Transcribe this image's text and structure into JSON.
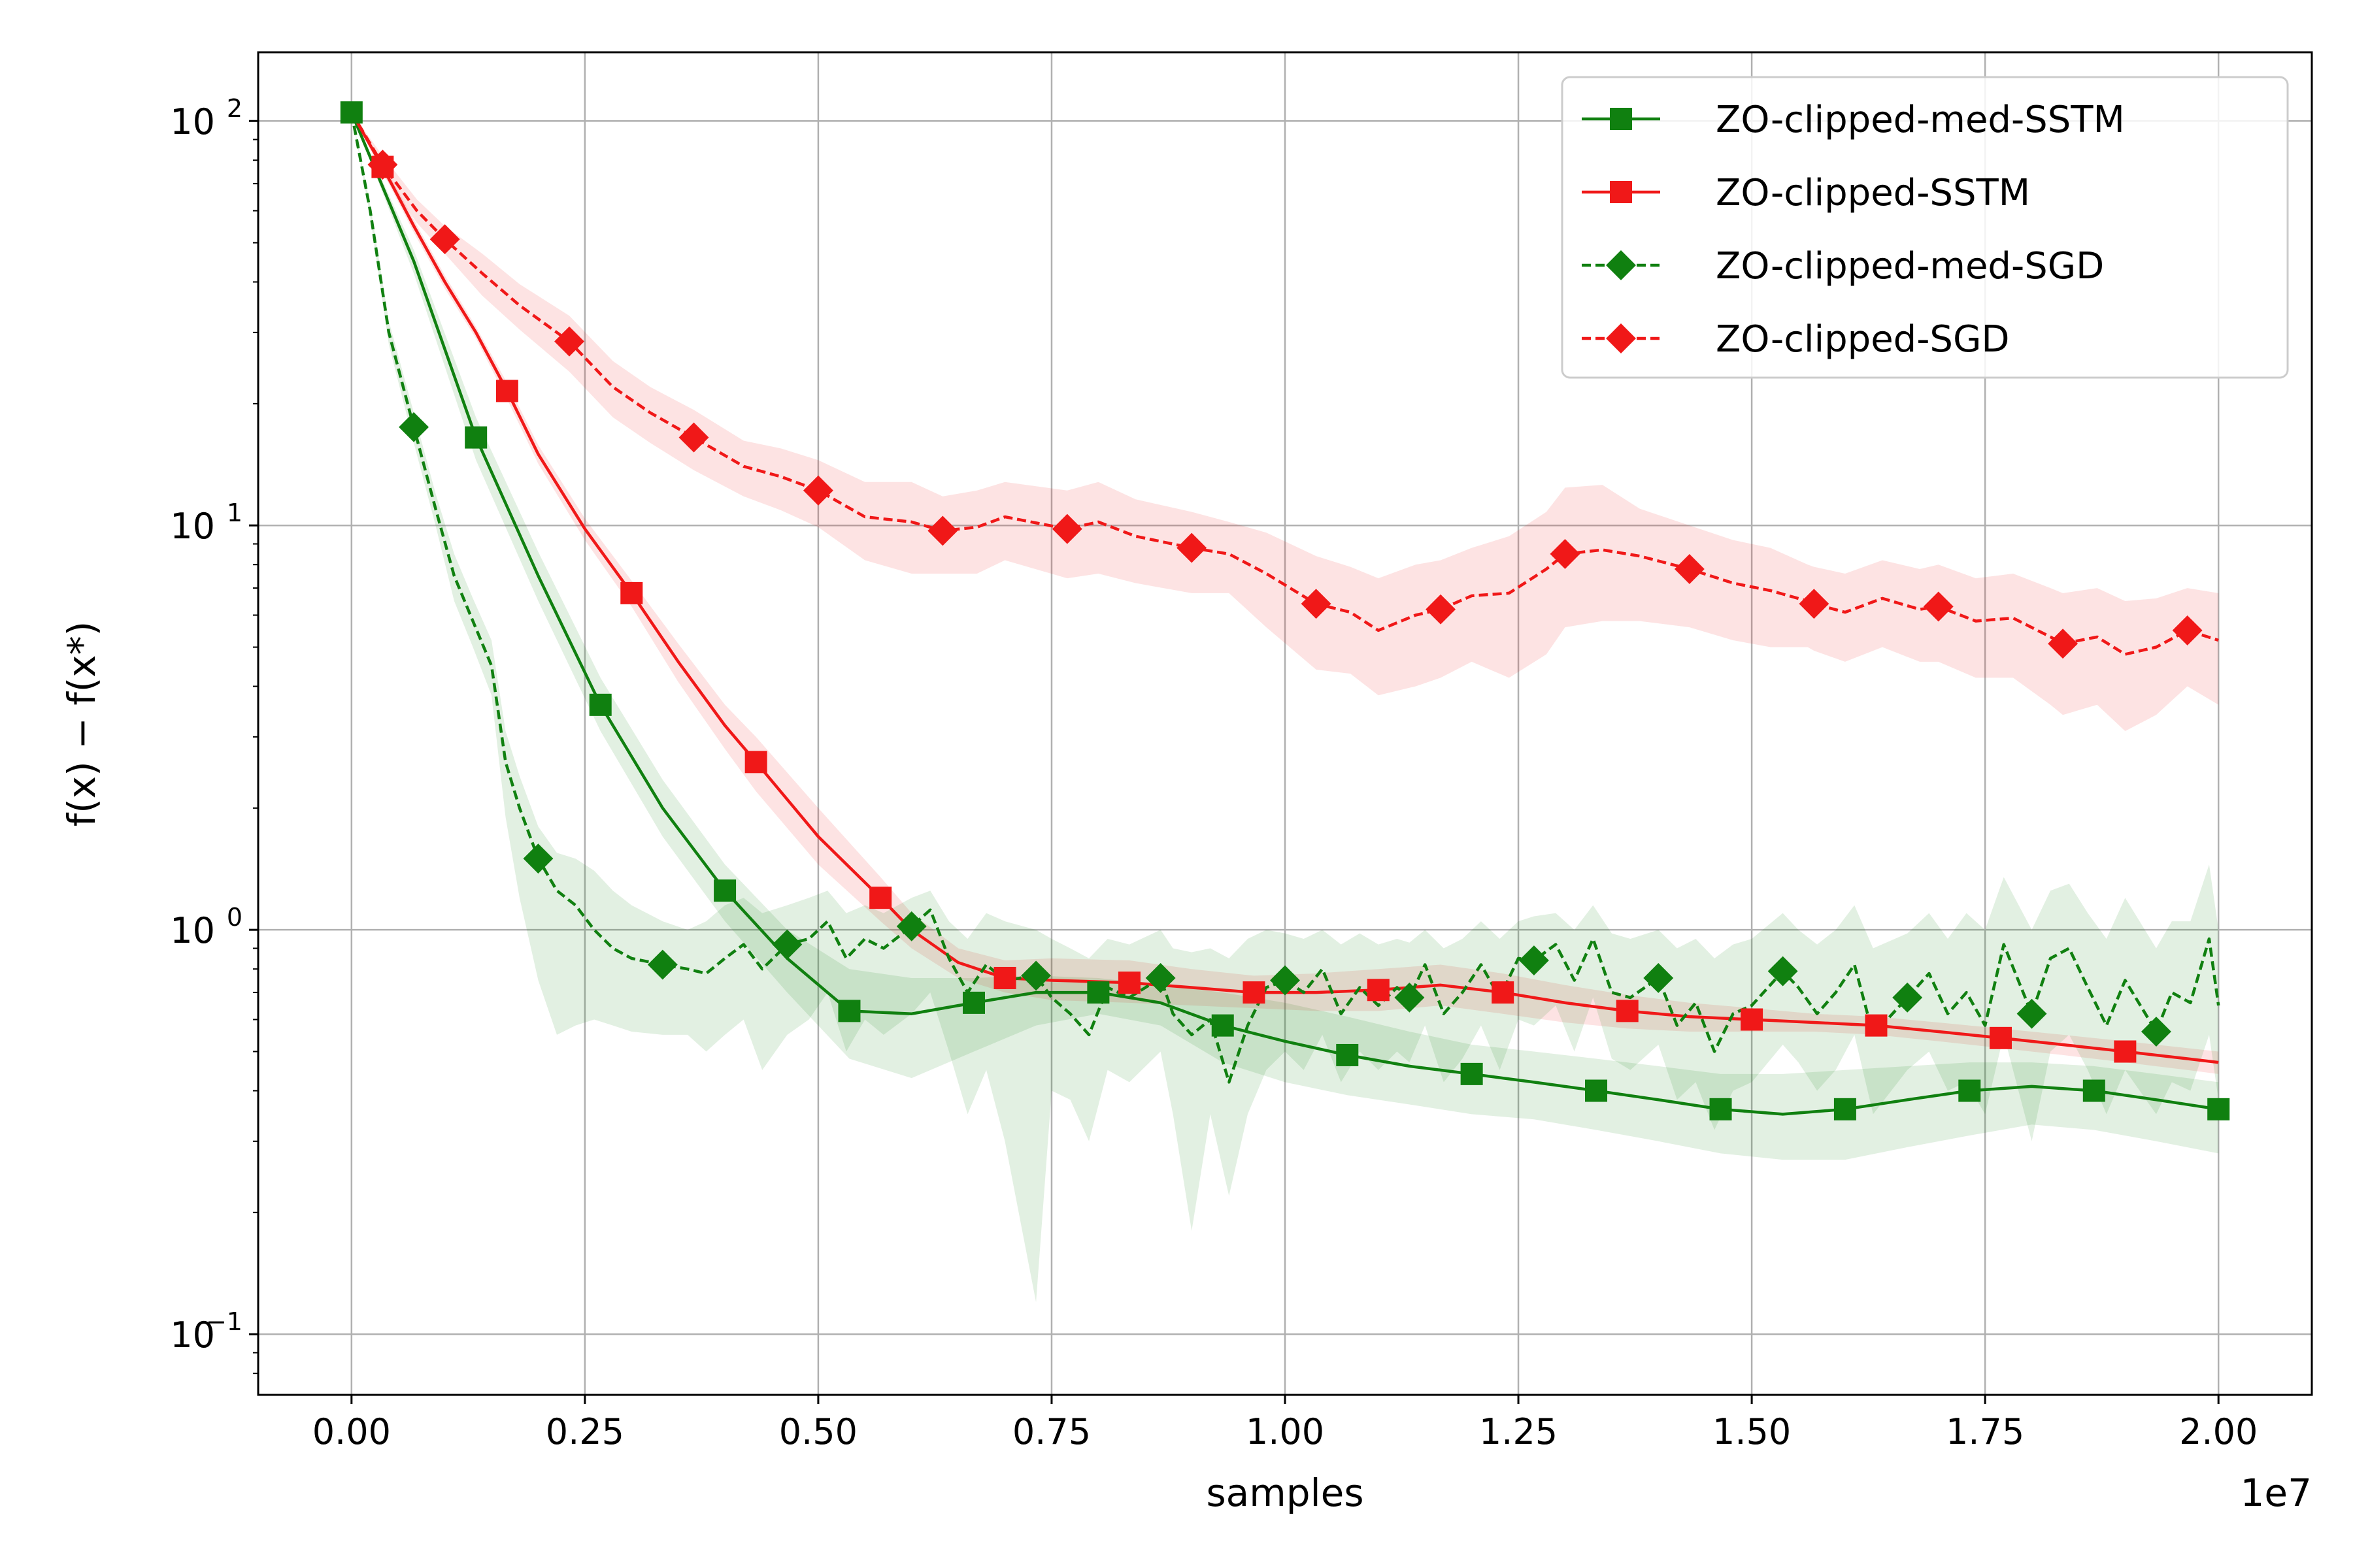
{
  "chart_data": {
    "type": "line",
    "title": "",
    "xlabel": "samples",
    "ylabel": "f(x) − f(x*)",
    "x_offset_label": "1e7",
    "x_scale": 10000000.0,
    "xlim": [
      -0.1,
      2.1
    ],
    "ylim_log10": [
      -1.15,
      2.17
    ],
    "y_scale": "log",
    "grid": true,
    "legend_position": "top-right",
    "x_ticks": [
      0.0,
      0.25,
      0.5,
      0.75,
      1.0,
      1.25,
      1.5,
      1.75,
      2.0
    ],
    "x_tick_labels": [
      "0.00",
      "0.25",
      "0.50",
      "0.75",
      "1.00",
      "1.25",
      "1.50",
      "1.75",
      "2.00"
    ],
    "y_ticks": [
      {
        "value": 100,
        "base": "10",
        "exp": "2"
      },
      {
        "value": 10,
        "base": "10",
        "exp": "1"
      },
      {
        "value": 1,
        "base": "10",
        "exp": "0"
      },
      {
        "value": 0.1,
        "base": "10",
        "exp": "−1"
      }
    ],
    "series": [
      {
        "name": "ZO-clipped-med-SSTM",
        "color": "#108010",
        "dashed": false,
        "marker": "square",
        "x": [
          0.0,
          0.0667,
          0.1333,
          0.2,
          0.2667,
          0.3333,
          0.4,
          0.4667,
          0.5333,
          0.6,
          0.6667,
          0.7333,
          0.8,
          0.8667,
          0.9333,
          1.0,
          1.0667,
          1.1333,
          1.2,
          1.2667,
          1.3333,
          1.4,
          1.4667,
          1.5333,
          1.6,
          1.6667,
          1.7333,
          1.8,
          1.8667,
          1.9333,
          2.0
        ],
        "y": [
          105,
          45,
          16.5,
          7.5,
          3.6,
          2.0,
          1.25,
          0.85,
          0.63,
          0.62,
          0.66,
          0.7,
          0.7,
          0.66,
          0.58,
          0.53,
          0.49,
          0.46,
          0.44,
          0.42,
          0.4,
          0.38,
          0.36,
          0.35,
          0.36,
          0.38,
          0.4,
          0.41,
          0.4,
          0.38,
          0.36
        ],
        "band_upper": [
          105,
          48,
          18.5,
          8.6,
          4.2,
          2.35,
          1.45,
          1.0,
          0.8,
          0.76,
          0.76,
          0.77,
          0.76,
          0.73,
          0.7,
          0.66,
          0.61,
          0.56,
          0.52,
          0.5,
          0.48,
          0.46,
          0.44,
          0.44,
          0.45,
          0.46,
          0.47,
          0.47,
          0.46,
          0.44,
          0.42
        ],
        "band_lower": [
          105,
          42,
          14.5,
          6.5,
          3.1,
          1.7,
          1.05,
          0.7,
          0.48,
          0.43,
          0.5,
          0.58,
          0.62,
          0.58,
          0.47,
          0.42,
          0.39,
          0.37,
          0.35,
          0.34,
          0.32,
          0.3,
          0.28,
          0.27,
          0.27,
          0.29,
          0.31,
          0.33,
          0.32,
          0.3,
          0.28
        ],
        "markers_x": [
          0.0,
          0.1333,
          0.2667,
          0.4,
          0.5333,
          0.6667,
          0.8,
          0.9333,
          1.0667,
          1.2,
          1.3333,
          1.4667,
          1.6,
          1.7333,
          1.8667,
          2.0
        ],
        "markers_y": [
          105,
          16.5,
          3.6,
          1.25,
          0.63,
          0.66,
          0.7,
          0.58,
          0.49,
          0.44,
          0.4,
          0.36,
          0.36,
          0.4,
          0.4,
          0.36
        ]
      },
      {
        "name": "ZO-clipped-SSTM",
        "color": "#f01818",
        "dashed": false,
        "marker": "square",
        "x": [
          0.0,
          0.0333,
          0.0667,
          0.1,
          0.1333,
          0.1667,
          0.2,
          0.25,
          0.3,
          0.35,
          0.4,
          0.4333,
          0.5,
          0.5667,
          0.6,
          0.65,
          0.7,
          0.75,
          0.8333,
          0.9,
          0.9667,
          1.0333,
          1.1,
          1.1667,
          1.2333,
          1.3,
          1.3667,
          1.4333,
          1.5,
          1.5667,
          1.6333,
          1.7,
          1.7667,
          1.8333,
          1.9,
          1.9667,
          2.0
        ],
        "y": [
          105,
          77,
          55,
          40,
          30,
          21.5,
          15,
          9.8,
          6.8,
          4.6,
          3.2,
          2.6,
          1.7,
          1.2,
          1.0,
          0.83,
          0.76,
          0.75,
          0.74,
          0.72,
          0.7,
          0.7,
          0.71,
          0.73,
          0.7,
          0.66,
          0.63,
          0.61,
          0.6,
          0.59,
          0.58,
          0.56,
          0.54,
          0.52,
          0.5,
          0.48,
          0.47
        ],
        "band_upper": [
          105,
          79,
          57,
          41.5,
          31,
          22.5,
          15.8,
          10.4,
          7.3,
          5.1,
          3.6,
          3.0,
          2.0,
          1.35,
          1.1,
          0.9,
          0.84,
          0.85,
          0.84,
          0.8,
          0.77,
          0.78,
          0.8,
          0.82,
          0.78,
          0.73,
          0.69,
          0.66,
          0.64,
          0.62,
          0.61,
          0.59,
          0.57,
          0.55,
          0.53,
          0.51,
          0.5
        ],
        "band_lower": [
          105,
          75,
          53,
          38.5,
          29,
          20.5,
          14.2,
          9.2,
          6.3,
          4.1,
          2.8,
          2.2,
          1.45,
          1.05,
          0.9,
          0.76,
          0.7,
          0.67,
          0.66,
          0.65,
          0.64,
          0.63,
          0.63,
          0.65,
          0.62,
          0.59,
          0.57,
          0.56,
          0.56,
          0.56,
          0.55,
          0.53,
          0.51,
          0.49,
          0.47,
          0.45,
          0.44
        ],
        "markers_x": [
          0.0333,
          0.1667,
          0.3,
          0.4333,
          0.5667,
          0.7,
          0.8333,
          0.9667,
          1.1,
          1.2333,
          1.3667,
          1.5,
          1.6333,
          1.7667,
          1.9
        ],
        "markers_y": [
          77,
          21.5,
          6.8,
          2.6,
          1.2,
          0.76,
          0.74,
          0.7,
          0.71,
          0.7,
          0.63,
          0.6,
          0.58,
          0.54,
          0.5
        ]
      },
      {
        "name": "ZO-clipped-med-SGD",
        "color": "#108010",
        "dashed": true,
        "marker": "diamond",
        "x": [
          0.0,
          0.02,
          0.04,
          0.0667,
          0.09,
          0.11,
          0.13,
          0.15,
          0.165,
          0.18,
          0.2,
          0.22,
          0.24,
          0.26,
          0.28,
          0.3,
          0.3333,
          0.36,
          0.38,
          0.4,
          0.42,
          0.44,
          0.4667,
          0.49,
          0.51,
          0.53,
          0.55,
          0.57,
          0.6,
          0.62,
          0.64,
          0.66,
          0.68,
          0.7,
          0.7333,
          0.75,
          0.77,
          0.79,
          0.81,
          0.8333,
          0.8667,
          0.88,
          0.9,
          0.92,
          0.94,
          0.96,
          0.98,
          1.0,
          1.02,
          1.04,
          1.06,
          1.08,
          1.1,
          1.12,
          1.1333,
          1.15,
          1.17,
          1.19,
          1.21,
          1.23,
          1.25,
          1.2667,
          1.29,
          1.31,
          1.33,
          1.35,
          1.37,
          1.4,
          1.42,
          1.44,
          1.46,
          1.48,
          1.5,
          1.5333,
          1.55,
          1.57,
          1.59,
          1.61,
          1.63,
          1.6667,
          1.69,
          1.71,
          1.73,
          1.75,
          1.77,
          1.8,
          1.82,
          1.84,
          1.86,
          1.88,
          1.9,
          1.9333,
          1.95,
          1.97,
          1.99,
          2.0
        ],
        "y": [
          105,
          60,
          30,
          17.5,
          11,
          7.5,
          5.8,
          4.5,
          2.6,
          2.0,
          1.5,
          1.25,
          1.15,
          1.0,
          0.9,
          0.85,
          0.82,
          0.8,
          0.78,
          0.85,
          0.92,
          0.8,
          0.92,
          0.95,
          1.05,
          0.85,
          0.95,
          0.9,
          1.02,
          1.12,
          0.85,
          0.7,
          0.82,
          0.75,
          0.77,
          0.68,
          0.62,
          0.55,
          0.72,
          0.68,
          0.76,
          0.62,
          0.55,
          0.6,
          0.42,
          0.58,
          0.72,
          0.75,
          0.7,
          0.8,
          0.62,
          0.72,
          0.65,
          0.72,
          0.68,
          0.82,
          0.62,
          0.7,
          0.82,
          0.68,
          0.85,
          0.84,
          0.92,
          0.75,
          0.95,
          0.7,
          0.68,
          0.76,
          0.58,
          0.66,
          0.5,
          0.62,
          0.65,
          0.79,
          0.72,
          0.62,
          0.7,
          0.82,
          0.55,
          0.68,
          0.78,
          0.62,
          0.7,
          0.58,
          0.92,
          0.62,
          0.85,
          0.9,
          0.72,
          0.58,
          0.75,
          0.56,
          0.7,
          0.66,
          0.95,
          0.65
        ],
        "band_upper": [
          105,
          62,
          32,
          19,
          12,
          8.5,
          6.6,
          5.2,
          3.1,
          2.4,
          1.8,
          1.55,
          1.5,
          1.4,
          1.25,
          1.15,
          1.05,
          1.0,
          1.05,
          1.15,
          1.2,
          1.1,
          1.15,
          1.2,
          1.25,
          1.1,
          1.15,
          1.1,
          1.2,
          1.25,
          1.05,
          0.95,
          1.1,
          1.05,
          1.0,
          0.95,
          0.9,
          0.85,
          0.95,
          0.92,
          1.0,
          0.9,
          0.88,
          0.9,
          0.85,
          0.95,
          1.0,
          0.98,
          0.95,
          1.0,
          0.92,
          0.98,
          0.92,
          0.95,
          0.93,
          1.0,
          0.9,
          0.95,
          1.05,
          0.95,
          1.05,
          1.08,
          1.1,
          1.0,
          1.15,
          0.98,
          0.95,
          1.0,
          0.9,
          0.95,
          0.85,
          0.92,
          0.95,
          1.1,
          1.0,
          0.92,
          1.0,
          1.15,
          0.9,
          0.98,
          1.1,
          0.95,
          1.1,
          1.0,
          1.35,
          1.0,
          1.25,
          1.3,
          1.1,
          0.95,
          1.2,
          0.9,
          1.05,
          1.05,
          1.45,
          1.0
        ],
        "band_lower": [
          105,
          58,
          28,
          16,
          10,
          6.5,
          5.0,
          3.8,
          1.9,
          1.2,
          0.75,
          0.55,
          0.58,
          0.6,
          0.58,
          0.56,
          0.55,
          0.55,
          0.5,
          0.55,
          0.6,
          0.45,
          0.55,
          0.6,
          0.7,
          0.5,
          0.6,
          0.55,
          0.62,
          0.7,
          0.5,
          0.35,
          0.45,
          0.3,
          0.12,
          0.4,
          0.38,
          0.3,
          0.45,
          0.42,
          0.5,
          0.35,
          0.18,
          0.35,
          0.22,
          0.35,
          0.45,
          0.5,
          0.45,
          0.55,
          0.42,
          0.5,
          0.45,
          0.5,
          0.47,
          0.58,
          0.42,
          0.48,
          0.58,
          0.45,
          0.6,
          0.58,
          0.65,
          0.5,
          0.68,
          0.48,
          0.45,
          0.52,
          0.38,
          0.42,
          0.32,
          0.4,
          0.42,
          0.52,
          0.47,
          0.4,
          0.45,
          0.55,
          0.35,
          0.45,
          0.5,
          0.4,
          0.42,
          0.35,
          0.55,
          0.3,
          0.5,
          0.55,
          0.45,
          0.35,
          0.45,
          0.35,
          0.42,
          0.4,
          0.55,
          0.38
        ],
        "markers_x": [
          0.0667,
          0.2,
          0.3333,
          0.4667,
          0.6,
          0.7333,
          0.8667,
          1.0,
          1.1333,
          1.2667,
          1.4,
          1.5333,
          1.6667,
          1.8,
          1.9333
        ],
        "markers_y": [
          17.5,
          1.5,
          0.82,
          0.92,
          1.02,
          0.77,
          0.76,
          0.75,
          0.68,
          0.84,
          0.76,
          0.79,
          0.68,
          0.62,
          0.56
        ]
      },
      {
        "name": "ZO-clipped-SGD",
        "color": "#f01818",
        "dashed": true,
        "marker": "diamond",
        "x": [
          0.0,
          0.0333,
          0.07,
          0.1,
          0.14,
          0.18,
          0.2333,
          0.28,
          0.32,
          0.3667,
          0.42,
          0.46,
          0.5,
          0.55,
          0.6,
          0.6333,
          0.67,
          0.7,
          0.7667,
          0.8,
          0.84,
          0.9,
          0.94,
          0.98,
          1.0333,
          1.07,
          1.1,
          1.14,
          1.1667,
          1.2,
          1.24,
          1.28,
          1.3,
          1.34,
          1.38,
          1.4333,
          1.48,
          1.52,
          1.56,
          1.5667,
          1.6,
          1.64,
          1.68,
          1.7,
          1.74,
          1.78,
          1.82,
          1.8333,
          1.87,
          1.9,
          1.9333,
          1.9667,
          2.0
        ],
        "y": [
          105,
          78,
          60,
          51,
          42,
          35,
          28.5,
          22,
          19,
          16.5,
          14,
          13.2,
          12.2,
          10.5,
          10.2,
          9.7,
          9.9,
          10.5,
          9.8,
          10.2,
          9.4,
          8.8,
          8.5,
          7.6,
          6.4,
          6.1,
          5.5,
          6.0,
          6.2,
          6.7,
          6.8,
          7.8,
          8.5,
          8.7,
          8.4,
          7.8,
          7.2,
          6.9,
          6.5,
          6.4,
          6.1,
          6.6,
          6.2,
          6.3,
          5.8,
          5.9,
          5.3,
          5.1,
          5.3,
          4.8,
          5.0,
          5.5,
          5.2
        ],
        "band_upper": [
          105,
          82,
          64,
          55,
          47,
          39.5,
          33,
          25.5,
          22,
          19.3,
          16.2,
          15.5,
          14.5,
          12.8,
          12.8,
          11.8,
          12.2,
          12.8,
          12.2,
          12.8,
          11.6,
          10.8,
          10.2,
          9.6,
          8.4,
          7.9,
          7.4,
          8.0,
          8.2,
          8.8,
          9.4,
          10.8,
          12.4,
          12.6,
          11.0,
          10.0,
          9.2,
          8.8,
          8.0,
          7.9,
          7.6,
          8.2,
          7.8,
          8.0,
          7.4,
          7.6,
          7.0,
          6.8,
          7.0,
          6.5,
          6.6,
          7.0,
          6.8
        ],
        "band_lower": [
          105,
          74,
          56,
          47,
          37,
          30.5,
          24,
          18.5,
          16,
          13.7,
          11.8,
          10.9,
          9.9,
          8.2,
          7.6,
          7.6,
          7.6,
          8.2,
          7.4,
          7.6,
          7.2,
          6.8,
          6.8,
          5.6,
          4.4,
          4.3,
          3.8,
          4.0,
          4.2,
          4.6,
          4.2,
          4.8,
          5.6,
          5.8,
          5.8,
          5.6,
          5.2,
          5.0,
          5.0,
          4.9,
          4.6,
          5.0,
          4.6,
          4.6,
          4.2,
          4.2,
          3.6,
          3.4,
          3.6,
          3.1,
          3.4,
          4.0,
          3.6
        ],
        "markers_x": [
          0.0333,
          0.1,
          0.2333,
          0.3667,
          0.5,
          0.6333,
          0.7667,
          0.9,
          1.0333,
          1.1667,
          1.3,
          1.4333,
          1.5667,
          1.7,
          1.8333,
          1.9667
        ],
        "markers_y": [
          78,
          51,
          28.5,
          16.5,
          12.2,
          9.7,
          9.8,
          8.8,
          6.4,
          6.2,
          8.5,
          7.8,
          6.4,
          6.3,
          5.1,
          5.5
        ]
      }
    ]
  }
}
